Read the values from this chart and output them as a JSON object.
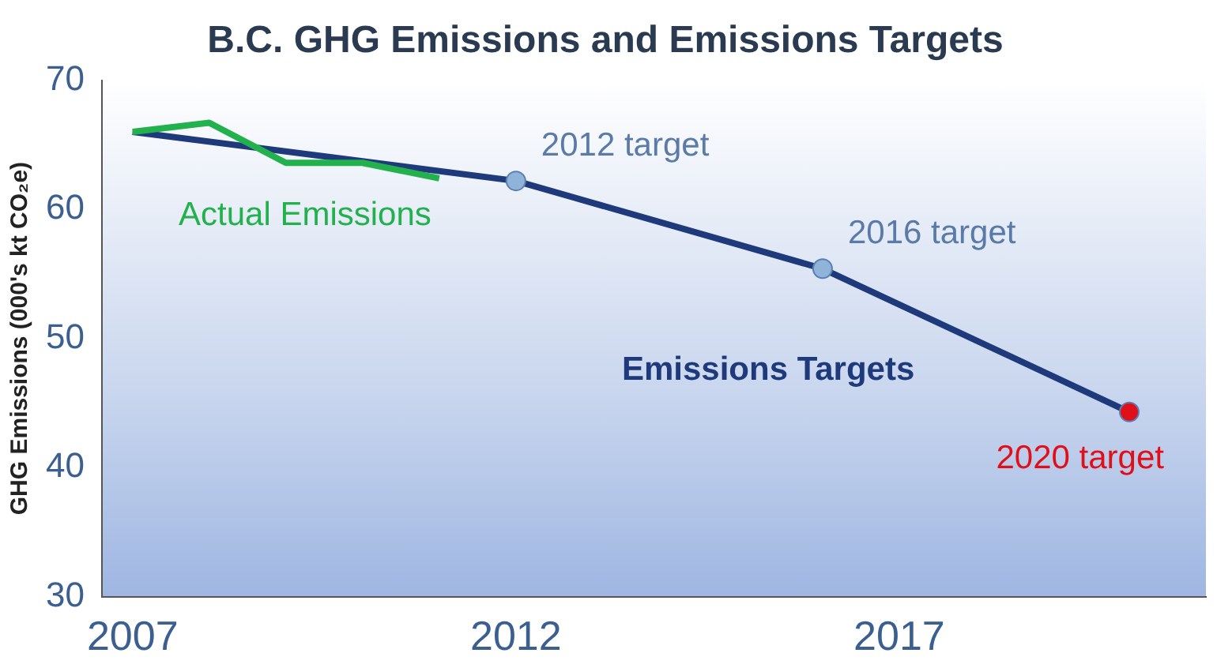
{
  "chart_data": {
    "type": "line",
    "title": "B.C. GHG Emissions and Emissions Targets",
    "ylabel": "GHG Emissions (000's kt CO₂e)",
    "xlim": [
      2006.6,
      2021
    ],
    "xticks": [
      2007,
      2012,
      2017
    ],
    "ylim": [
      30,
      70
    ],
    "yticks": [
      30,
      40,
      50,
      60,
      70
    ],
    "grid": false,
    "legend": false,
    "marker": "none",
    "series": [
      {
        "name": "Actual Emissions",
        "color": "#22b14c",
        "x": [
          2007,
          2008,
          2009,
          2010,
          2011
        ],
        "values": [
          66,
          66.7,
          63.6,
          63.6,
          62.4
        ]
      },
      {
        "name": "Emissions Targets",
        "color": "#1f3a7a",
        "x": [
          2007,
          2012,
          2016,
          2020
        ],
        "values": [
          66,
          62.2,
          55.4,
          44.3
        ]
      },
      {
        "type": "scatter",
        "marker": "circle",
        "x": [
          2012,
          2016,
          2020
        ],
        "values": [
          62.2,
          55.4,
          44.3
        ],
        "colors": [
          "#8fb3d9",
          "#8fb3d9",
          "#e0101a"
        ]
      }
    ],
    "annotations": [
      {
        "text": "2012 target",
        "x": 2012,
        "y": 62.2
      },
      {
        "text": "2016 target",
        "x": 2016,
        "y": 55.4
      },
      {
        "text": "2020 target",
        "x": 2020,
        "y": 44.3
      }
    ]
  }
}
